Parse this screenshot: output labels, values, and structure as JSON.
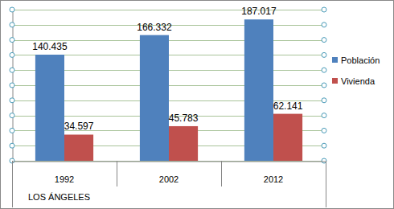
{
  "chart_data": {
    "type": "bar",
    "categories": [
      "1992",
      "2002",
      "2012"
    ],
    "xlabel": "LOS ÁNGELES",
    "series": [
      {
        "name": "Población",
        "color": "#4f81bd",
        "values": [
          140435,
          166332,
          187017
        ],
        "value_labels": [
          "140.435",
          "166.332",
          "187.017"
        ]
      },
      {
        "name": "Vivienda",
        "color": "#c0504d",
        "values": [
          34597,
          45783,
          62141
        ],
        "value_labels": [
          "34.597",
          "45.783",
          "62.141"
        ]
      }
    ],
    "ylim": [
      0,
      200000
    ],
    "yticks": [
      0,
      20000,
      40000,
      60000,
      80000,
      100000,
      120000,
      140000,
      160000,
      180000,
      200000
    ],
    "grid": true,
    "legend": "right",
    "data_labels": true,
    "tick_labels": "x"
  }
}
